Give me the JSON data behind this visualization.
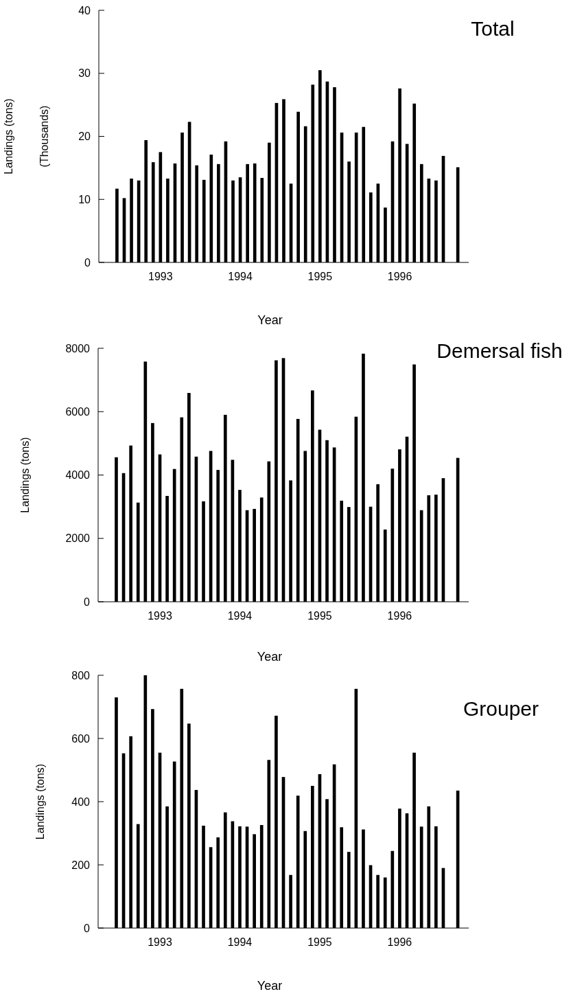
{
  "chart_data": [
    {
      "type": "bar",
      "title": "Total",
      "ylabel": "Landings (tons)\n(Thousands)",
      "xlabel": "Year",
      "color": "#000000",
      "categories": [
        null,
        null,
        null,
        null,
        null,
        null,
        "1993",
        null,
        null,
        null,
        null,
        null,
        null,
        null,
        null,
        null,
        null,
        "1994",
        null,
        null,
        null,
        null,
        null,
        null,
        null,
        null,
        null,
        null,
        "1995",
        null,
        null,
        null,
        null,
        null,
        null,
        null,
        null,
        null,
        null,
        "1996",
        null,
        null,
        null,
        null,
        null,
        null,
        null,
        null
      ],
      "values": [
        11.7,
        10.2,
        13.3,
        13.0,
        19.4,
        15.9,
        17.5,
        13.3,
        15.7,
        20.6,
        22.3,
        15.4,
        13.1,
        17.1,
        15.6,
        19.2,
        13.0,
        13.5,
        15.6,
        15.7,
        13.4,
        19.0,
        25.3,
        25.9,
        12.5,
        23.9,
        21.6,
        28.2,
        30.5,
        28.7,
        27.8,
        20.6,
        16.0,
        20.6,
        21.5,
        11.1,
        12.5,
        8.7,
        19.2,
        27.6,
        18.8,
        25.2,
        15.6,
        13.3,
        13.0,
        16.9,
        null,
        15.1
      ],
      "ylim": [
        0,
        40
      ],
      "yticks": [
        0,
        10,
        20,
        30,
        40
      ],
      "grid": false
    },
    {
      "type": "bar",
      "title": "Demersal fish",
      "ylabel": "Landings (tons)",
      "xlabel": "Year",
      "color": "#000000",
      "categories": [
        null,
        null,
        null,
        null,
        null,
        null,
        "1993",
        null,
        null,
        null,
        null,
        null,
        null,
        null,
        null,
        null,
        null,
        "1994",
        null,
        null,
        null,
        null,
        null,
        null,
        null,
        null,
        null,
        null,
        "1995",
        null,
        null,
        null,
        null,
        null,
        null,
        null,
        null,
        null,
        null,
        "1996",
        null,
        null,
        null,
        null,
        null,
        null,
        null,
        null
      ],
      "values": [
        4560,
        4060,
        4930,
        3130,
        7580,
        5640,
        4650,
        3340,
        4190,
        5820,
        6590,
        4580,
        3170,
        4760,
        4160,
        5900,
        4480,
        3530,
        2890,
        2930,
        3290,
        4430,
        7620,
        7690,
        3830,
        5770,
        4760,
        6670,
        5430,
        5100,
        4870,
        3190,
        2990,
        5840,
        7830,
        3000,
        3710,
        2280,
        4200,
        4810,
        5210,
        7490,
        2890,
        3360,
        3380,
        3900,
        null,
        4540
      ],
      "ylim": [
        0,
        8000
      ],
      "yticks": [
        0,
        2000,
        4000,
        6000,
        8000
      ],
      "grid": false
    },
    {
      "type": "bar",
      "title": "Grouper",
      "ylabel": "Landings (tons)",
      "xlabel": "Year",
      "color": "#000000",
      "categories": [
        null,
        null,
        null,
        null,
        null,
        null,
        "1993",
        null,
        null,
        null,
        null,
        null,
        null,
        null,
        null,
        null,
        null,
        "1994",
        null,
        null,
        null,
        null,
        null,
        null,
        null,
        null,
        null,
        null,
        "1995",
        null,
        null,
        null,
        null,
        null,
        null,
        null,
        null,
        null,
        null,
        "1996",
        null,
        null,
        null,
        null,
        null,
        null,
        null,
        null
      ],
      "values": [
        730,
        553,
        607,
        329,
        800,
        693,
        555,
        385,
        527,
        757,
        647,
        437,
        324,
        256,
        287,
        366,
        338,
        322,
        321,
        297,
        326,
        532,
        672,
        478,
        168,
        419,
        307,
        450,
        487,
        408,
        518,
        319,
        241,
        757,
        312,
        199,
        168,
        160,
        244,
        378,
        363,
        555,
        321,
        385,
        322,
        190,
        null,
        435
      ],
      "ylim": [
        0,
        800
      ],
      "yticks": [
        0,
        200,
        400,
        600,
        800
      ],
      "grid": false
    }
  ]
}
